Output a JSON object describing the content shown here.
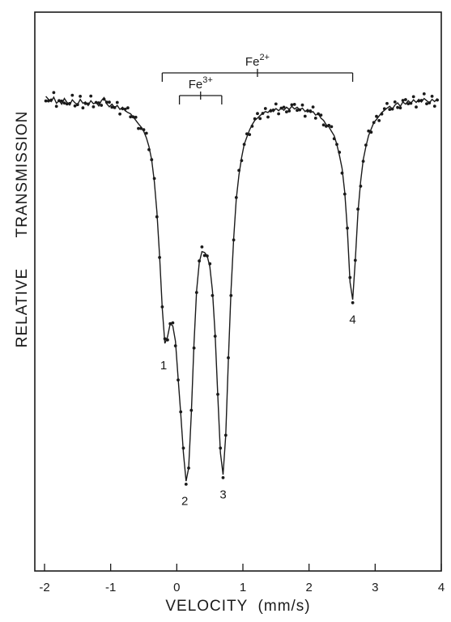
{
  "chart_data": {
    "type": "scatter",
    "title": "",
    "xlabel": "VELOCITY  (mm/s)",
    "ylabel_left": "RELATIVE",
    "ylabel_right": "TRANSMISSION",
    "xlim": [
      -2,
      4
    ],
    "ylim": [
      0,
      1
    ],
    "x_ticks": [
      -2,
      -1,
      0,
      1,
      2,
      3,
      4
    ],
    "x_tick_labels": [
      "-2",
      "-1",
      "0",
      "1",
      "2",
      "3",
      "4"
    ],
    "grid": false,
    "legend": "none",
    "series": [
      {
        "values_type": "measured points and fitted curve",
        "points": [
          [
            -1.98,
            0.965
          ],
          [
            -1.94,
            0.958
          ],
          [
            -1.9,
            0.953
          ],
          [
            -1.86,
            0.963
          ],
          [
            -1.82,
            0.949
          ],
          [
            -1.78,
            0.955
          ],
          [
            -1.74,
            0.947
          ],
          [
            -1.7,
            0.96
          ],
          [
            -1.66,
            0.951
          ],
          [
            -1.62,
            0.945
          ],
          [
            -1.58,
            0.957
          ],
          [
            -1.54,
            0.95
          ],
          [
            -1.5,
            0.946
          ],
          [
            -1.46,
            0.958
          ],
          [
            -1.42,
            0.949
          ],
          [
            -1.38,
            0.952
          ],
          [
            -1.34,
            0.944
          ],
          [
            -1.3,
            0.955
          ],
          [
            -1.26,
            0.948
          ],
          [
            -1.22,
            0.951
          ],
          [
            -1.18,
            0.943
          ],
          [
            -1.14,
            0.955
          ],
          [
            -1.1,
            0.962
          ],
          [
            -1.06,
            0.948
          ],
          [
            -1.02,
            0.941
          ],
          [
            -0.98,
            0.947
          ],
          [
            -0.94,
            0.939
          ],
          [
            -0.9,
            0.944
          ],
          [
            -0.86,
            0.935
          ],
          [
            -0.82,
            0.94
          ],
          [
            -0.78,
            0.932
          ],
          [
            -0.74,
            0.928
          ],
          [
            -0.7,
            0.925
          ],
          [
            -0.66,
            0.918
          ],
          [
            -0.62,
            0.91
          ],
          [
            -0.58,
            0.902
          ],
          [
            -0.54,
            0.895
          ],
          [
            -0.5,
            0.885
          ],
          [
            -0.46,
            0.87
          ],
          [
            -0.42,
            0.85
          ],
          [
            -0.38,
            0.82
          ],
          [
            -0.34,
            0.77
          ],
          [
            -0.3,
            0.7
          ],
          [
            -0.26,
            0.6
          ],
          [
            -0.22,
            0.48
          ],
          [
            -0.18,
            0.4
          ],
          [
            -0.14,
            0.415
          ],
          [
            -0.1,
            0.445
          ],
          [
            -0.06,
            0.44
          ],
          [
            -0.02,
            0.405
          ],
          [
            0.02,
            0.32
          ],
          [
            0.06,
            0.24
          ],
          [
            0.1,
            0.15
          ],
          [
            0.14,
            0.085
          ],
          [
            0.18,
            0.115
          ],
          [
            0.22,
            0.24
          ],
          [
            0.26,
            0.4
          ],
          [
            0.3,
            0.52
          ],
          [
            0.34,
            0.585
          ],
          [
            0.38,
            0.61
          ],
          [
            0.42,
            0.608
          ],
          [
            0.46,
            0.6
          ],
          [
            0.5,
            0.575
          ],
          [
            0.54,
            0.52
          ],
          [
            0.58,
            0.42
          ],
          [
            0.62,
            0.28
          ],
          [
            0.66,
            0.15
          ],
          [
            0.7,
            0.1
          ],
          [
            0.74,
            0.19
          ],
          [
            0.78,
            0.36
          ],
          [
            0.82,
            0.52
          ],
          [
            0.86,
            0.64
          ],
          [
            0.9,
            0.73
          ],
          [
            0.94,
            0.785
          ],
          [
            0.98,
            0.825
          ],
          [
            1.02,
            0.855
          ],
          [
            1.06,
            0.872
          ],
          [
            1.1,
            0.888
          ],
          [
            1.14,
            0.9
          ],
          [
            1.18,
            0.91
          ],
          [
            1.22,
            0.915
          ],
          [
            1.26,
            0.921
          ],
          [
            1.3,
            0.926
          ],
          [
            1.34,
            0.93
          ],
          [
            1.38,
            0.928
          ],
          [
            1.42,
            0.935
          ],
          [
            1.46,
            0.93
          ],
          [
            1.5,
            0.937
          ],
          [
            1.54,
            0.932
          ],
          [
            1.58,
            0.938
          ],
          [
            1.62,
            0.933
          ],
          [
            1.66,
            0.94
          ],
          [
            1.7,
            0.935
          ],
          [
            1.74,
            0.942
          ],
          [
            1.78,
            0.936
          ],
          [
            1.82,
            0.94
          ],
          [
            1.86,
            0.934
          ],
          [
            1.9,
            0.938
          ],
          [
            1.94,
            0.93
          ],
          [
            1.98,
            0.935
          ],
          [
            2.02,
            0.928
          ],
          [
            2.06,
            0.93
          ],
          [
            2.1,
            0.922
          ],
          [
            2.14,
            0.925
          ],
          [
            2.18,
            0.915
          ],
          [
            2.22,
            0.91
          ],
          [
            2.26,
            0.9
          ],
          [
            2.3,
            0.895
          ],
          [
            2.34,
            0.885
          ],
          [
            2.38,
            0.875
          ],
          [
            2.42,
            0.855
          ],
          [
            2.46,
            0.83
          ],
          [
            2.5,
            0.8
          ],
          [
            2.54,
            0.745
          ],
          [
            2.58,
            0.66
          ],
          [
            2.62,
            0.54
          ],
          [
            2.66,
            0.5
          ],
          [
            2.7,
            0.59
          ],
          [
            2.74,
            0.7
          ],
          [
            2.78,
            0.77
          ],
          [
            2.82,
            0.82
          ],
          [
            2.86,
            0.85
          ],
          [
            2.9,
            0.875
          ],
          [
            2.94,
            0.89
          ],
          [
            2.98,
            0.905
          ],
          [
            3.02,
            0.912
          ],
          [
            3.06,
            0.92
          ],
          [
            3.1,
            0.928
          ],
          [
            3.14,
            0.933
          ],
          [
            3.18,
            0.938
          ],
          [
            3.22,
            0.942
          ],
          [
            3.26,
            0.936
          ],
          [
            3.3,
            0.945
          ],
          [
            3.34,
            0.95
          ],
          [
            3.38,
            0.942
          ],
          [
            3.42,
            0.952
          ],
          [
            3.46,
            0.947
          ],
          [
            3.5,
            0.955
          ],
          [
            3.54,
            0.949
          ],
          [
            3.58,
            0.957
          ],
          [
            3.62,
            0.951
          ],
          [
            3.66,
            0.958
          ],
          [
            3.7,
            0.952
          ],
          [
            3.74,
            0.96
          ],
          [
            3.78,
            0.955
          ],
          [
            3.82,
            0.95
          ],
          [
            3.86,
            0.958
          ],
          [
            3.9,
            0.953
          ],
          [
            3.94,
            0.96
          ]
        ]
      }
    ],
    "peak_labels": [
      {
        "text": "1",
        "x": -0.2,
        "y": 0.37
      },
      {
        "text": "2",
        "x": 0.12,
        "y": 0.06
      },
      {
        "text": "3",
        "x": 0.7,
        "y": 0.075
      },
      {
        "text": "4",
        "x": 2.66,
        "y": 0.475
      }
    ],
    "brackets": [
      {
        "label": "Fe",
        "superscript": "2+",
        "x_start": -0.22,
        "x_end": 2.66,
        "center": 1.22
      },
      {
        "label": "Fe",
        "superscript": "3+",
        "x_start": 0.04,
        "x_end": 0.68,
        "center": 0.36
      }
    ]
  }
}
